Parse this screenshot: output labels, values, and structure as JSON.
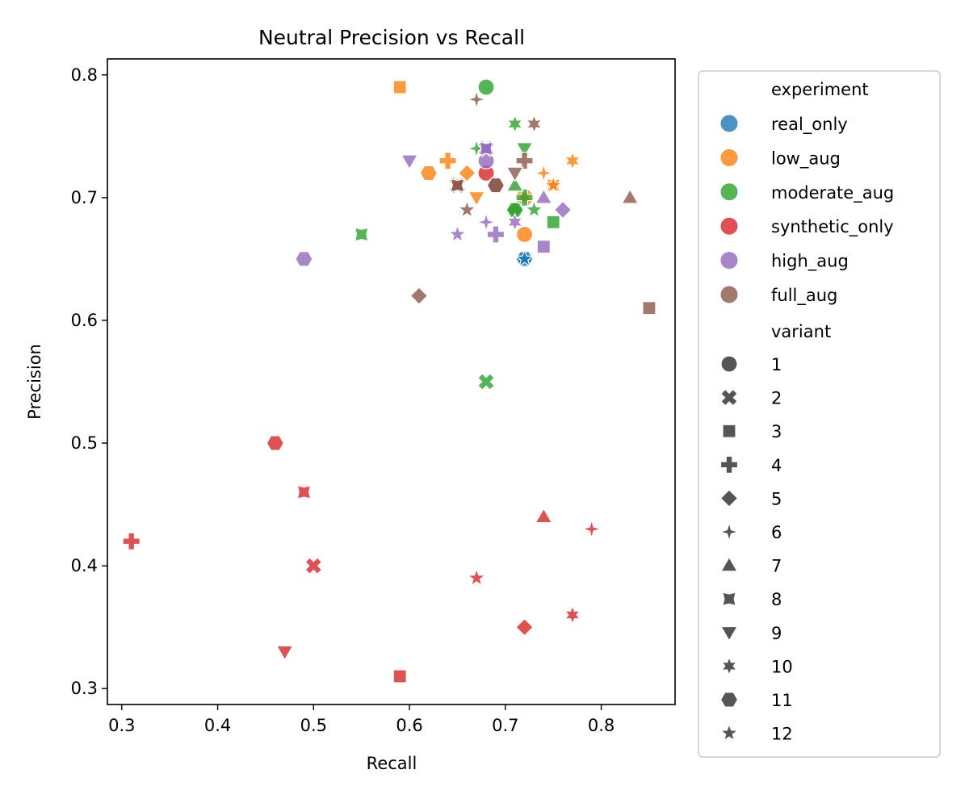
{
  "chart_data": {
    "type": "scatter",
    "title": "Neutral Precision vs Recall",
    "xlabel": "Recall",
    "ylabel": "Precision",
    "xlim": [
      0.285,
      0.877
    ],
    "ylim": [
      0.287,
      0.813
    ],
    "xticks": [
      "0.3",
      "0.4",
      "0.5",
      "0.6",
      "0.7",
      "0.8"
    ],
    "yticks": [
      "0.3",
      "0.4",
      "0.5",
      "0.6",
      "0.7",
      "0.8"
    ],
    "grid": false,
    "legend_position": "outside-right",
    "legend_hue_title": "experiment",
    "legend_style_title": "variant",
    "experiments": [
      {
        "name": "real_only",
        "color": "#1f77b4"
      },
      {
        "name": "low_aug",
        "color": "#ff7f0e"
      },
      {
        "name": "moderate_aug",
        "color": "#2ca02c"
      },
      {
        "name": "synthetic_only",
        "color": "#d62728"
      },
      {
        "name": "high_aug",
        "color": "#9467bd"
      },
      {
        "name": "full_aug",
        "color": "#8c564b"
      }
    ],
    "variants": [
      {
        "name": "1",
        "marker": "circle"
      },
      {
        "name": "2",
        "marker": "x"
      },
      {
        "name": "3",
        "marker": "square"
      },
      {
        "name": "4",
        "marker": "plus"
      },
      {
        "name": "5",
        "marker": "diamond"
      },
      {
        "name": "6",
        "marker": "star4"
      },
      {
        "name": "7",
        "marker": "triangle-up"
      },
      {
        "name": "8",
        "marker": "star4-cross"
      },
      {
        "name": "9",
        "marker": "triangle-down"
      },
      {
        "name": "10",
        "marker": "star6"
      },
      {
        "name": "11",
        "marker": "hexagon"
      },
      {
        "name": "12",
        "marker": "star5"
      }
    ],
    "points": [
      {
        "experiment": "real_only",
        "variant": "1",
        "x": 0.72,
        "y": 0.65
      },
      {
        "experiment": "real_only",
        "variant": "2",
        "x": 0.72,
        "y": 0.65
      },
      {
        "experiment": "real_only",
        "variant": "3",
        "x": 0.72,
        "y": 0.65
      },
      {
        "experiment": "real_only",
        "variant": "4",
        "x": 0.72,
        "y": 0.65
      },
      {
        "experiment": "real_only",
        "variant": "5",
        "x": 0.72,
        "y": 0.65
      },
      {
        "experiment": "real_only",
        "variant": "6",
        "x": 0.72,
        "y": 0.65
      },
      {
        "experiment": "real_only",
        "variant": "7",
        "x": 0.72,
        "y": 0.65
      },
      {
        "experiment": "real_only",
        "variant": "8",
        "x": 0.72,
        "y": 0.65
      },
      {
        "experiment": "real_only",
        "variant": "9",
        "x": 0.72,
        "y": 0.65
      },
      {
        "experiment": "real_only",
        "variant": "10",
        "x": 0.72,
        "y": 0.65
      },
      {
        "experiment": "real_only",
        "variant": "11",
        "x": 0.72,
        "y": 0.65
      },
      {
        "experiment": "real_only",
        "variant": "12",
        "x": 0.72,
        "y": 0.65
      },
      {
        "experiment": "low_aug",
        "variant": "1",
        "x": 0.72,
        "y": 0.67
      },
      {
        "experiment": "low_aug",
        "variant": "2",
        "x": 0.72,
        "y": 0.7
      },
      {
        "experiment": "low_aug",
        "variant": "3",
        "x": 0.59,
        "y": 0.79
      },
      {
        "experiment": "low_aug",
        "variant": "4",
        "x": 0.64,
        "y": 0.73
      },
      {
        "experiment": "low_aug",
        "variant": "5",
        "x": 0.66,
        "y": 0.72
      },
      {
        "experiment": "low_aug",
        "variant": "6",
        "x": 0.74,
        "y": 0.72
      },
      {
        "experiment": "low_aug",
        "variant": "7",
        "x": 0.65,
        "y": 0.71
      },
      {
        "experiment": "low_aug",
        "variant": "8",
        "x": 0.75,
        "y": 0.71
      },
      {
        "experiment": "low_aug",
        "variant": "9",
        "x": 0.67,
        "y": 0.7
      },
      {
        "experiment": "low_aug",
        "variant": "10",
        "x": 0.77,
        "y": 0.73
      },
      {
        "experiment": "low_aug",
        "variant": "11",
        "x": 0.62,
        "y": 0.72
      },
      {
        "experiment": "low_aug",
        "variant": "12",
        "x": 0.75,
        "y": 0.71
      },
      {
        "experiment": "moderate_aug",
        "variant": "1",
        "x": 0.68,
        "y": 0.79
      },
      {
        "experiment": "moderate_aug",
        "variant": "2",
        "x": 0.68,
        "y": 0.55
      },
      {
        "experiment": "moderate_aug",
        "variant": "3",
        "x": 0.75,
        "y": 0.68
      },
      {
        "experiment": "moderate_aug",
        "variant": "4",
        "x": 0.72,
        "y": 0.7
      },
      {
        "experiment": "moderate_aug",
        "variant": "5",
        "x": 0.71,
        "y": 0.69
      },
      {
        "experiment": "moderate_aug",
        "variant": "6",
        "x": 0.67,
        "y": 0.74
      },
      {
        "experiment": "moderate_aug",
        "variant": "7",
        "x": 0.71,
        "y": 0.71
      },
      {
        "experiment": "moderate_aug",
        "variant": "8",
        "x": 0.55,
        "y": 0.67
      },
      {
        "experiment": "moderate_aug",
        "variant": "9",
        "x": 0.72,
        "y": 0.74
      },
      {
        "experiment": "moderate_aug",
        "variant": "10",
        "x": 0.71,
        "y": 0.76
      },
      {
        "experiment": "moderate_aug",
        "variant": "11",
        "x": 0.71,
        "y": 0.69
      },
      {
        "experiment": "moderate_aug",
        "variant": "12",
        "x": 0.73,
        "y": 0.69
      },
      {
        "experiment": "synthetic_only",
        "variant": "1",
        "x": 0.68,
        "y": 0.72
      },
      {
        "experiment": "synthetic_only",
        "variant": "2",
        "x": 0.5,
        "y": 0.4
      },
      {
        "experiment": "synthetic_only",
        "variant": "3",
        "x": 0.59,
        "y": 0.31
      },
      {
        "experiment": "synthetic_only",
        "variant": "4",
        "x": 0.31,
        "y": 0.42
      },
      {
        "experiment": "synthetic_only",
        "variant": "5",
        "x": 0.72,
        "y": 0.35
      },
      {
        "experiment": "synthetic_only",
        "variant": "6",
        "x": 0.79,
        "y": 0.43
      },
      {
        "experiment": "synthetic_only",
        "variant": "7",
        "x": 0.74,
        "y": 0.44
      },
      {
        "experiment": "synthetic_only",
        "variant": "8",
        "x": 0.49,
        "y": 0.46
      },
      {
        "experiment": "synthetic_only",
        "variant": "9",
        "x": 0.47,
        "y": 0.33
      },
      {
        "experiment": "synthetic_only",
        "variant": "10",
        "x": 0.77,
        "y": 0.36
      },
      {
        "experiment": "synthetic_only",
        "variant": "11",
        "x": 0.46,
        "y": 0.5
      },
      {
        "experiment": "synthetic_only",
        "variant": "12",
        "x": 0.67,
        "y": 0.39
      },
      {
        "experiment": "high_aug",
        "variant": "1",
        "x": 0.68,
        "y": 0.73
      },
      {
        "experiment": "high_aug",
        "variant": "2",
        "x": 0.68,
        "y": 0.74
      },
      {
        "experiment": "high_aug",
        "variant": "3",
        "x": 0.74,
        "y": 0.66
      },
      {
        "experiment": "high_aug",
        "variant": "4",
        "x": 0.69,
        "y": 0.67
      },
      {
        "experiment": "high_aug",
        "variant": "5",
        "x": 0.76,
        "y": 0.69
      },
      {
        "experiment": "high_aug",
        "variant": "6",
        "x": 0.68,
        "y": 0.68
      },
      {
        "experiment": "high_aug",
        "variant": "7",
        "x": 0.74,
        "y": 0.7
      },
      {
        "experiment": "high_aug",
        "variant": "8",
        "x": 0.68,
        "y": 0.74
      },
      {
        "experiment": "high_aug",
        "variant": "9",
        "x": 0.6,
        "y": 0.73
      },
      {
        "experiment": "high_aug",
        "variant": "10",
        "x": 0.71,
        "y": 0.68
      },
      {
        "experiment": "high_aug",
        "variant": "11",
        "x": 0.49,
        "y": 0.65
      },
      {
        "experiment": "high_aug",
        "variant": "12",
        "x": 0.65,
        "y": 0.67
      },
      {
        "experiment": "full_aug",
        "variant": "1",
        "x": 0.69,
        "y": 0.71
      },
      {
        "experiment": "full_aug",
        "variant": "2",
        "x": 0.65,
        "y": 0.71
      },
      {
        "experiment": "full_aug",
        "variant": "3",
        "x": 0.85,
        "y": 0.61
      },
      {
        "experiment": "full_aug",
        "variant": "4",
        "x": 0.72,
        "y": 0.73
      },
      {
        "experiment": "full_aug",
        "variant": "5",
        "x": 0.61,
        "y": 0.62
      },
      {
        "experiment": "full_aug",
        "variant": "6",
        "x": 0.67,
        "y": 0.78
      },
      {
        "experiment": "full_aug",
        "variant": "7",
        "x": 0.83,
        "y": 0.7
      },
      {
        "experiment": "full_aug",
        "variant": "8",
        "x": 0.65,
        "y": 0.71
      },
      {
        "experiment": "full_aug",
        "variant": "9",
        "x": 0.71,
        "y": 0.72
      },
      {
        "experiment": "full_aug",
        "variant": "10",
        "x": 0.73,
        "y": 0.76
      },
      {
        "experiment": "full_aug",
        "variant": "11",
        "x": 0.69,
        "y": 0.71
      },
      {
        "experiment": "full_aug",
        "variant": "12",
        "x": 0.66,
        "y": 0.69
      }
    ]
  }
}
